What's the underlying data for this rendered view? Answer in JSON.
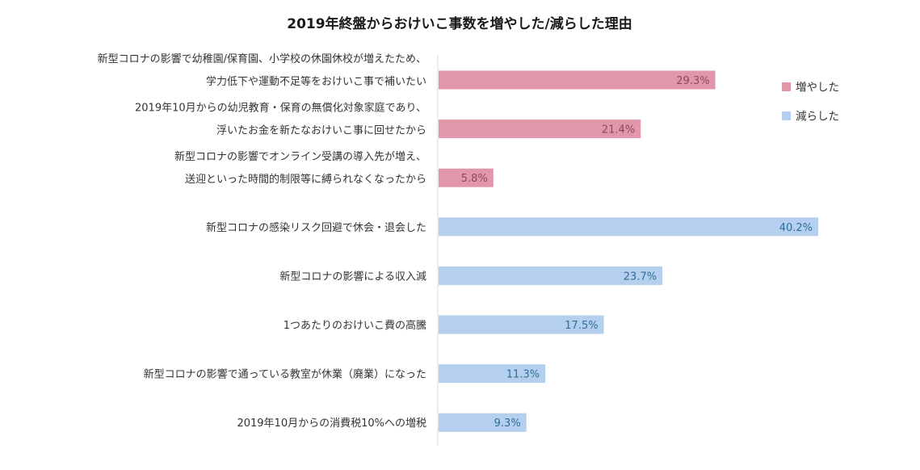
{
  "chart_data": {
    "type": "bar",
    "orientation": "horizontal",
    "title": "2019年終盤からおけいこ事数を増やした/減らした理由",
    "xlabel": "",
    "ylabel": "",
    "xlim": [
      0,
      45
    ],
    "grid": false,
    "legend_position": "right",
    "unit_suffix": "%",
    "series": [
      {
        "name": "増やした",
        "color": "#e196aa",
        "label_color": "#8a4a5a"
      },
      {
        "name": "減らした",
        "color": "#b4d0ee",
        "label_color": "#2f6f9a"
      }
    ],
    "categories": [
      {
        "lines": [
          "新型コロナの影響で幼稚園/保育園、小学校の休園休校が増えたため、",
          "学力低下や運動不足等をおけいこ事で補いたい"
        ],
        "series": 0,
        "value": 29.3,
        "label": "29.3%"
      },
      {
        "lines": [
          "2019年10月からの幼児教育・保育の無償化対象家庭であり、",
          "浮いたお金を新たなおけいこ事に回せたから"
        ],
        "series": 0,
        "value": 21.4,
        "label": "21.4%"
      },
      {
        "lines": [
          "新型コロナの影響でオンライン受講の導入先が増え、",
          "送迎といった時間的制限等に縛られなくなったから"
        ],
        "series": 0,
        "value": 5.8,
        "label": "5.8%"
      },
      {
        "lines": [
          "新型コロナの感染リスク回避で休会・退会した"
        ],
        "series": 1,
        "value": 40.2,
        "label": "40.2%"
      },
      {
        "lines": [
          "新型コロナの影響による収入減"
        ],
        "series": 1,
        "value": 23.7,
        "label": "23.7%"
      },
      {
        "lines": [
          "1つあたりのおけいこ費の高騰"
        ],
        "series": 1,
        "value": 17.5,
        "label": "17.5%"
      },
      {
        "lines": [
          "新型コロナの影響で通っている教室が休業（廃業）になった"
        ],
        "series": 1,
        "value": 11.3,
        "label": "11.3%"
      },
      {
        "lines": [
          "2019年10月からの消費税10%への増税"
        ],
        "series": 1,
        "value": 9.3,
        "label": "9.3%"
      }
    ]
  }
}
